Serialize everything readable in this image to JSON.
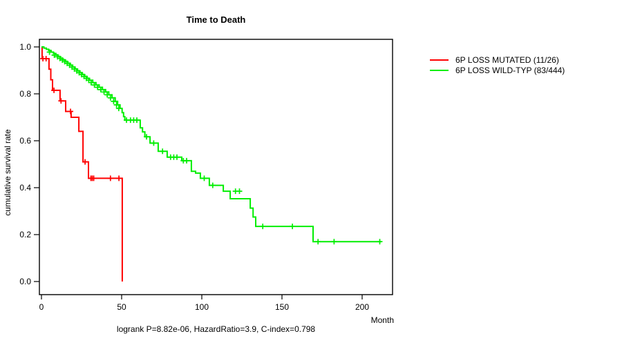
{
  "chart_data": {
    "type": "line",
    "variant": "kaplan-meier-survival",
    "title": "Time to Death",
    "xlabel": "Month",
    "ylabel": "cumulative survival rate",
    "caption": "logrank P=8.82e-06, HazardRatio=3.9, C-index=0.798",
    "xlim": [
      0,
      220
    ],
    "ylim": [
      0.0,
      1.0
    ],
    "x_ticks": [
      0,
      50,
      100,
      150,
      200
    ],
    "y_ticks": [
      "0.0",
      "0.2",
      "0.4",
      "0.6",
      "0.8",
      "1.0"
    ],
    "grid": "off",
    "legend_position": "right-outside",
    "series": [
      {
        "name": "6P LOSS MUTATED (11/26)",
        "color": "#ff0000",
        "end_month": 50.4,
        "steps": [
          [
            0,
            1.0
          ],
          [
            0.4,
            0.95
          ],
          [
            4.7,
            0.905
          ],
          [
            5.8,
            0.86
          ],
          [
            6.9,
            0.815
          ],
          [
            11.6,
            0.77
          ],
          [
            15.1,
            0.725
          ],
          [
            18.5,
            0.7
          ],
          [
            23.3,
            0.64
          ],
          [
            25.9,
            0.51
          ],
          [
            29.3,
            0.44
          ],
          [
            50.4,
            0.0
          ]
        ],
        "censors": [
          [
            0.9,
            0.95
          ],
          [
            2.9,
            0.95
          ],
          [
            7.8,
            0.815
          ],
          [
            12.2,
            0.77
          ],
          [
            18.1,
            0.725
          ],
          [
            27.2,
            0.51
          ],
          [
            30.8,
            0.44
          ],
          [
            31.7,
            0.44
          ],
          [
            32.6,
            0.44
          ],
          [
            43,
            0.44
          ],
          [
            48.3,
            0.44
          ]
        ]
      },
      {
        "name": "6P LOSS WILD-TYP (83/444)",
        "color": "#00ee00",
        "end_month": 212,
        "steps": [
          [
            0,
            1.0
          ],
          [
            1.5,
            0.995
          ],
          [
            3,
            0.99
          ],
          [
            4.5,
            0.985
          ],
          [
            6,
            0.978
          ],
          [
            7.5,
            0.972
          ],
          [
            9,
            0.965
          ],
          [
            10.5,
            0.958
          ],
          [
            12,
            0.951
          ],
          [
            13.5,
            0.944
          ],
          [
            15,
            0.937
          ],
          [
            16.5,
            0.93
          ],
          [
            18,
            0.922
          ],
          [
            19.5,
            0.914
          ],
          [
            21,
            0.906
          ],
          [
            22.5,
            0.898
          ],
          [
            24,
            0.89
          ],
          [
            25.5,
            0.882
          ],
          [
            27,
            0.874
          ],
          [
            28.5,
            0.866
          ],
          [
            30,
            0.858
          ],
          [
            32,
            0.848
          ],
          [
            34,
            0.838
          ],
          [
            36,
            0.828
          ],
          [
            38,
            0.818
          ],
          [
            40,
            0.808
          ],
          [
            42,
            0.796
          ],
          [
            44,
            0.783
          ],
          [
            46,
            0.768
          ],
          [
            47.5,
            0.753
          ],
          [
            49,
            0.738
          ],
          [
            50.3,
            0.72
          ],
          [
            51.2,
            0.703
          ],
          [
            52,
            0.688
          ],
          [
            61.6,
            0.655
          ],
          [
            63,
            0.638
          ],
          [
            64.5,
            0.617
          ],
          [
            67.7,
            0.59
          ],
          [
            72.8,
            0.555
          ],
          [
            78.4,
            0.53
          ],
          [
            87.5,
            0.515
          ],
          [
            93.5,
            0.47
          ],
          [
            96.1,
            0.462
          ],
          [
            99.1,
            0.44
          ],
          [
            104.7,
            0.41
          ],
          [
            113.4,
            0.385
          ],
          [
            117.7,
            0.353
          ],
          [
            130.2,
            0.313
          ],
          [
            132,
            0.275
          ],
          [
            133.6,
            0.235
          ],
          [
            169.4,
            0.17
          ]
        ],
        "censors": [
          [
            5,
            0.978
          ],
          [
            8,
            0.965
          ],
          [
            10,
            0.958
          ],
          [
            11.5,
            0.951
          ],
          [
            13,
            0.944
          ],
          [
            14.5,
            0.937
          ],
          [
            16,
            0.93
          ],
          [
            17.5,
            0.922
          ],
          [
            19,
            0.914
          ],
          [
            20.5,
            0.906
          ],
          [
            22,
            0.898
          ],
          [
            23.5,
            0.89
          ],
          [
            25,
            0.882
          ],
          [
            26.5,
            0.874
          ],
          [
            28,
            0.866
          ],
          [
            29.5,
            0.858
          ],
          [
            31,
            0.848
          ],
          [
            33,
            0.838
          ],
          [
            35,
            0.828
          ],
          [
            37,
            0.818
          ],
          [
            39,
            0.808
          ],
          [
            41,
            0.796
          ],
          [
            43,
            0.783
          ],
          [
            45,
            0.768
          ],
          [
            46.8,
            0.753
          ],
          [
            48.2,
            0.738
          ],
          [
            53,
            0.688
          ],
          [
            55.5,
            0.688
          ],
          [
            57.5,
            0.688
          ],
          [
            59.5,
            0.688
          ],
          [
            65.5,
            0.617
          ],
          [
            70,
            0.59
          ],
          [
            75.5,
            0.555
          ],
          [
            80.5,
            0.53
          ],
          [
            82.5,
            0.53
          ],
          [
            84.5,
            0.53
          ],
          [
            88.5,
            0.515
          ],
          [
            90.5,
            0.515
          ],
          [
            101.5,
            0.44
          ],
          [
            106.8,
            0.41
          ],
          [
            121,
            0.385
          ],
          [
            123.5,
            0.385
          ],
          [
            138,
            0.235
          ],
          [
            156.5,
            0.235
          ],
          [
            172.5,
            0.17
          ],
          [
            182.5,
            0.17
          ],
          [
            211,
            0.17
          ]
        ]
      }
    ]
  },
  "colors": {
    "axis": "#000000",
    "background": "#ffffff"
  }
}
